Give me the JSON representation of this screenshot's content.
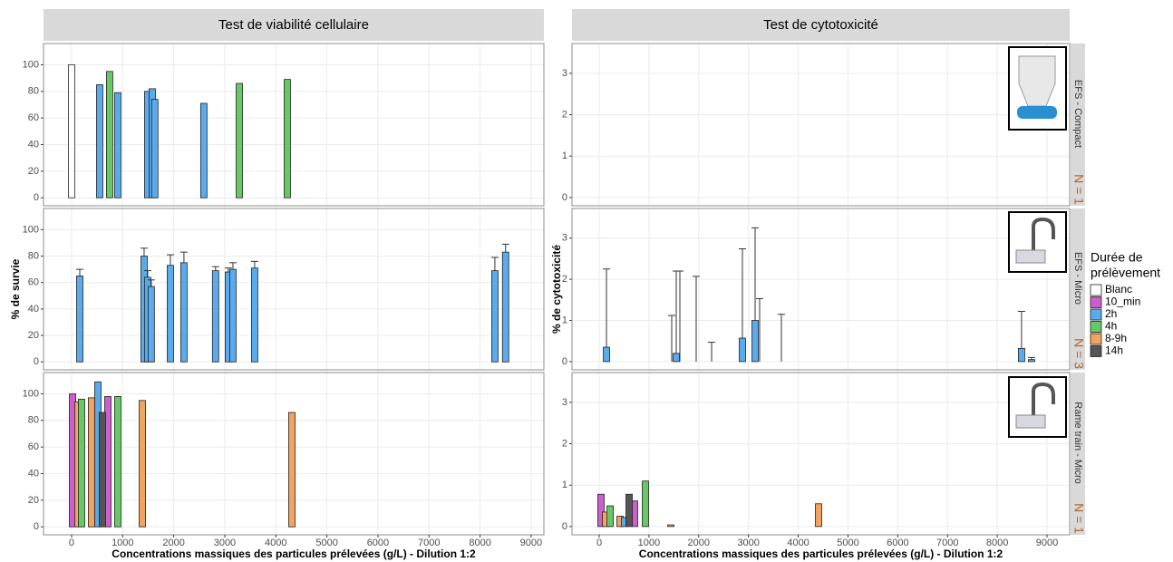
{
  "chart_data": [
    {
      "type": "bar",
      "title": "Test de viabilité cellulaire",
      "y_label": "% de survie",
      "x_label": "Concentrations massiques des particules prélevées (g/L) - Dilution 1:2",
      "xlim": [
        -550,
        9250
      ],
      "xticks": [
        0,
        1000,
        2000,
        3000,
        4000,
        5000,
        6000,
        7000,
        8000,
        9000
      ],
      "ylim": [
        -6,
        116
      ],
      "yticks": [
        0,
        20,
        40,
        60,
        80,
        100
      ],
      "grid": true,
      "panels": [
        {
          "series": [
            {
              "name": "Blanc",
              "x": [
                0
              ],
              "values": [
                100
              ]
            },
            {
              "name": "2h",
              "x": [
                550,
                905,
                1490,
                1580,
                1630,
                2590
              ],
              "values": [
                85,
                79,
                80,
                82,
                74,
                71
              ]
            },
            {
              "name": "4h",
              "x": [
                745,
                3285,
                4225
              ],
              "values": [
                95,
                86,
                89
              ]
            }
          ]
        },
        {
          "series": [
            {
              "name": "2h",
              "x": [
                160,
                1420,
                1490,
                1560,
                1935,
                2200,
                2820,
                3070,
                3160,
                3585,
                8290,
                8500
              ],
              "values": [
                65,
                80,
                64,
                57,
                73,
                75,
                69,
                68,
                70,
                71,
                69,
                83
              ],
              "errors": [
                5,
                6,
                5,
                5,
                8,
                8,
                3,
                3,
                5,
                5,
                10,
                6
              ]
            }
          ]
        },
        {
          "series": [
            {
              "name": "10_min",
              "x": [
                18,
                710
              ],
              "values": [
                100,
                98
              ]
            },
            {
              "name": "8-9h",
              "x": [
                124,
                390,
                1385,
                4314
              ],
              "values": [
                94,
                97,
                95,
                86
              ]
            },
            {
              "name": "4h",
              "x": [
                195,
                905
              ],
              "values": [
                96,
                98
              ]
            },
            {
              "name": "2h",
              "x": [
                515
              ],
              "values": [
                109
              ]
            },
            {
              "name": "14h",
              "x": [
                604
              ],
              "values": [
                86
              ]
            }
          ]
        }
      ]
    },
    {
      "type": "bar",
      "title": "Test de cytotoxicité",
      "y_label": "% de cytotoxicité",
      "x_label": "Concentrations massiques des particules prélevées (g/L) - Dilution 1:2",
      "xlim": [
        -547,
        9455
      ],
      "xticks": [
        0,
        1000,
        2000,
        3000,
        4000,
        5000,
        6000,
        7000,
        8000,
        9000
      ],
      "ylim": [
        -0.2,
        3.72
      ],
      "yticks": [
        0,
        1,
        2,
        3
      ],
      "grid": true,
      "panels": [
        {
          "series": [
            {
              "name": "Blanc",
              "x": [
                0
              ],
              "values": [
                0
              ]
            },
            {
              "name": "2h",
              "x": [
                565,
                947,
                1530,
                1603,
                1676,
                2641
              ],
              "values": [
                0,
                0,
                0,
                0,
                0,
                0
              ]
            },
            {
              "name": "4h",
              "x": [
                765,
                3352,
                4335
              ],
              "values": [
                0,
                0,
                0
              ]
            }
          ]
        },
        {
          "series": [
            {
              "name": "2h",
              "x": [
                146,
                1457,
                1548,
                1621,
                1949,
                2259,
                2878,
                3133,
                3224,
                3661,
                8488,
                8689
              ],
              "values": [
                0.35,
                0,
                0.2,
                0,
                0,
                0,
                0.57,
                1,
                0,
                0,
                0.32,
                0.05
              ],
              "errors": [
                1.9,
                1.12,
                2,
                2.2,
                2.07,
                0.47,
                2.17,
                2.25,
                1.53,
                1.15,
                0.9,
                0.05
              ]
            }
          ]
        },
        {
          "series": [
            {
              "name": "10_min",
              "x": [
                36,
                710
              ],
              "values": [
                0.78,
                0.62
              ]
            },
            {
              "name": "8-9h",
              "x": [
                127,
                419,
                1439,
                4408
              ],
              "values": [
                0.35,
                0.25,
                0.04,
                0.55
              ]
            },
            {
              "name": "4h",
              "x": [
                219,
                929
              ],
              "values": [
                0.5,
                1.1
              ]
            },
            {
              "name": "2h",
              "x": [
                510
              ],
              "values": [
                0.22
              ]
            },
            {
              "name": "14h",
              "x": [
                601
              ],
              "values": [
                0.78
              ]
            }
          ]
        }
      ],
      "facets": [
        {
          "label": "EFS - Compact",
          "n": "N = 1"
        },
        {
          "label": "EFS - Micro",
          "n": "N = 3"
        },
        {
          "label": "Rame train - Micro",
          "n": "N = 1"
        }
      ],
      "legend": {
        "title": [
          "Durée de",
          "prélèvement"
        ],
        "position": "right",
        "series": [
          {
            "name": "Blanc",
            "color": "#ffffff"
          },
          {
            "name": "10_min",
            "color": "#cc5fcc"
          },
          {
            "name": "2h",
            "color": "#5aaaee"
          },
          {
            "name": "4h",
            "color": "#66c966"
          },
          {
            "name": "8-9h",
            "color": "#f2a35e"
          },
          {
            "name": "14h",
            "color": "#555555"
          }
        ]
      }
    }
  ]
}
